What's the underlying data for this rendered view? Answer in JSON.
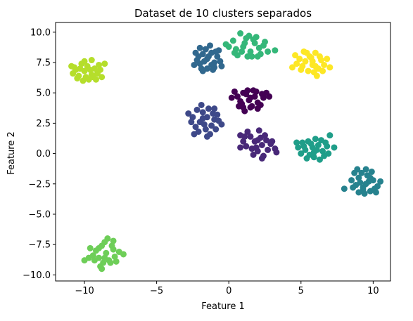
{
  "chart_data": {
    "type": "scatter",
    "title": "Dataset de 10 clusters separados",
    "xlabel": "Feature 1",
    "ylabel": "Feature 2",
    "xlim": [
      -12.0,
      11.2
    ],
    "ylim": [
      -10.5,
      10.8
    ],
    "x_ticks": [
      -10,
      -5,
      0,
      5,
      10
    ],
    "x_tick_labels": [
      "−10",
      "−5",
      "0",
      "5",
      "10"
    ],
    "y_ticks": [
      -10.0,
      -7.5,
      -5.0,
      -2.5,
      0.0,
      2.5,
      5.0,
      7.5,
      10.0
    ],
    "y_tick_labels": [
      "−10.0",
      "−7.5",
      "−5.0",
      "−2.5",
      "0.0",
      "2.5",
      "5.0",
      "7.5",
      "10.0"
    ],
    "grid": false,
    "legend": "none",
    "colormap": "viridis",
    "series": [
      {
        "color": "#440154",
        "points": [
          [
            1.0,
            5.0
          ],
          [
            1.5,
            4.6
          ],
          [
            2.0,
            4.2
          ],
          [
            0.8,
            4.3
          ],
          [
            1.2,
            4.9
          ],
          [
            1.9,
            5.1
          ],
          [
            2.4,
            4.6
          ],
          [
            0.6,
            4.7
          ],
          [
            1.6,
            3.9
          ],
          [
            1.0,
            3.8
          ],
          [
            2.2,
            4.0
          ],
          [
            1.3,
            5.2
          ],
          [
            0.2,
            4.6
          ],
          [
            2.8,
            4.7
          ],
          [
            1.4,
            4.4
          ],
          [
            1.8,
            4.7
          ],
          [
            0.9,
            4.1
          ],
          [
            2.6,
            5.0
          ],
          [
            1.1,
            3.5
          ],
          [
            2.0,
            3.7
          ],
          [
            0.4,
            5.1
          ],
          [
            1.7,
            5.2
          ],
          [
            1.5,
            3.8
          ],
          [
            0.7,
            3.9
          ],
          [
            2.3,
            4.9
          ]
        ]
      },
      {
        "color": "#482878",
        "points": [
          [
            1.8,
            1.0
          ],
          [
            2.3,
            0.7
          ],
          [
            1.2,
            0.6
          ],
          [
            2.6,
            1.1
          ],
          [
            1.6,
            0.4
          ],
          [
            2.9,
            0.8
          ],
          [
            1.0,
            1.0
          ],
          [
            2.0,
            0.2
          ],
          [
            2.5,
            1.5
          ],
          [
            1.5,
            1.4
          ],
          [
            3.2,
            0.4
          ],
          [
            0.8,
            0.5
          ],
          [
            2.2,
            1.3
          ],
          [
            1.9,
            0.5
          ],
          [
            2.7,
            0.3
          ],
          [
            1.3,
            1.8
          ],
          [
            2.1,
            1.9
          ],
          [
            3.0,
            1.0
          ],
          [
            1.7,
            -0.1
          ],
          [
            2.4,
            -0.2
          ],
          [
            1.1,
            1.4
          ],
          [
            2.0,
            1.1
          ],
          [
            3.3,
            0.1
          ],
          [
            2.3,
            -0.4
          ],
          [
            0.8,
            1.5
          ]
        ]
      },
      {
        "color": "#3e4989",
        "points": [
          [
            -1.5,
            3.0
          ],
          [
            -2.0,
            2.6
          ],
          [
            -1.0,
            2.8
          ],
          [
            -1.8,
            3.4
          ],
          [
            -2.3,
            2.2
          ],
          [
            -1.2,
            2.3
          ],
          [
            -0.8,
            3.2
          ],
          [
            -1.6,
            2.0
          ],
          [
            -2.5,
            3.0
          ],
          [
            -1.4,
            3.7
          ],
          [
            -0.9,
            2.0
          ],
          [
            -2.1,
            1.8
          ],
          [
            -1.0,
            3.7
          ],
          [
            -1.9,
            4.0
          ],
          [
            -2.6,
            2.6
          ],
          [
            -1.3,
            1.6
          ],
          [
            -0.7,
            2.7
          ],
          [
            -2.8,
            3.3
          ],
          [
            -1.7,
            2.4
          ],
          [
            -1.1,
            3.3
          ],
          [
            -2.2,
            3.6
          ],
          [
            -1.5,
            1.4
          ],
          [
            -0.5,
            2.4
          ],
          [
            -2.4,
            1.6
          ],
          [
            -1.8,
            2.9
          ]
        ]
      },
      {
        "color": "#31688e",
        "points": [
          [
            -1.5,
            7.8
          ],
          [
            -2.0,
            7.4
          ],
          [
            -1.0,
            7.5
          ],
          [
            -1.8,
            8.2
          ],
          [
            -1.2,
            8.3
          ],
          [
            -2.2,
            7.7
          ],
          [
            -0.8,
            8.0
          ],
          [
            -1.5,
            7.0
          ],
          [
            -1.6,
            8.6
          ],
          [
            -2.3,
            8.3
          ],
          [
            -1.0,
            7.1
          ],
          [
            -0.6,
            7.6
          ],
          [
            -1.9,
            7.0
          ],
          [
            -1.3,
            8.9
          ],
          [
            -2.0,
            8.7
          ],
          [
            -1.1,
            6.9
          ],
          [
            -0.7,
            8.5
          ],
          [
            -2.4,
            7.3
          ],
          [
            -1.7,
            7.6
          ],
          [
            -1.4,
            8.0
          ],
          [
            -0.9,
            8.4
          ],
          [
            -2.1,
            8.0
          ],
          [
            -1.8,
            6.8
          ],
          [
            -1.2,
            7.3
          ],
          [
            -0.5,
            7.2
          ]
        ]
      },
      {
        "color": "#26828e",
        "points": [
          [
            9.5,
            -2.5
          ],
          [
            9.0,
            -2.0
          ],
          [
            10.0,
            -2.2
          ],
          [
            9.3,
            -3.0
          ],
          [
            8.8,
            -2.6
          ],
          [
            9.8,
            -3.1
          ],
          [
            9.2,
            -1.6
          ],
          [
            10.3,
            -2.7
          ],
          [
            9.6,
            -1.8
          ],
          [
            8.7,
            -1.6
          ],
          [
            9.9,
            -1.5
          ],
          [
            9.4,
            -3.3
          ],
          [
            10.1,
            -2.9
          ],
          [
            8.6,
            -2.8
          ],
          [
            9.1,
            -2.4
          ],
          [
            9.7,
            -2.3
          ],
          [
            10.5,
            -2.3
          ],
          [
            9.0,
            -3.2
          ],
          [
            8.0,
            -2.9
          ],
          [
            9.5,
            -1.3
          ],
          [
            10.2,
            -3.2
          ],
          [
            8.9,
            -1.3
          ],
          [
            9.3,
            -2.8
          ],
          [
            9.8,
            -2.0
          ],
          [
            8.5,
            -2.2
          ]
        ]
      },
      {
        "color": "#1f9e89",
        "points": [
          [
            5.8,
            0.5
          ],
          [
            5.3,
            0.3
          ],
          [
            6.2,
            0.7
          ],
          [
            5.6,
            -0.1
          ],
          [
            6.5,
            0.2
          ],
          [
            5.1,
            0.9
          ],
          [
            6.0,
            1.2
          ],
          [
            5.5,
            1.0
          ],
          [
            6.8,
            0.6
          ],
          [
            5.9,
            -0.3
          ],
          [
            5.0,
            0.0
          ],
          [
            6.4,
            1.1
          ],
          [
            6.9,
            0.0
          ],
          [
            5.7,
            0.8
          ],
          [
            6.1,
            0.3
          ],
          [
            4.8,
            0.5
          ],
          [
            6.6,
            -0.2
          ],
          [
            5.4,
            -0.4
          ],
          [
            7.3,
            0.5
          ],
          [
            6.3,
            -0.5
          ],
          [
            7.0,
            1.5
          ],
          [
            4.7,
            0.9
          ],
          [
            5.2,
            0.6
          ],
          [
            6.7,
            0.9
          ],
          [
            5.9,
            0.1
          ]
        ]
      },
      {
        "color": "#35b779",
        "points": [
          [
            1.0,
            8.8
          ],
          [
            1.5,
            8.4
          ],
          [
            0.5,
            8.6
          ],
          [
            1.8,
            9.1
          ],
          [
            1.2,
            9.5
          ],
          [
            0.8,
            9.9
          ],
          [
            1.6,
            8.0
          ],
          [
            2.1,
            8.7
          ],
          [
            0.3,
            9.3
          ],
          [
            1.3,
            8.0
          ],
          [
            2.4,
            8.9
          ],
          [
            0.0,
            8.8
          ],
          [
            1.9,
            9.6
          ],
          [
            2.7,
            8.4
          ],
          [
            1.1,
            9.1
          ],
          [
            0.6,
            8.1
          ],
          [
            2.2,
            8.2
          ],
          [
            3.2,
            8.5
          ],
          [
            0.9,
            8.4
          ],
          [
            1.7,
            9.4
          ],
          [
            -0.2,
            9.0
          ],
          [
            1.4,
            9.7
          ],
          [
            2.5,
            9.2
          ],
          [
            0.4,
            8.3
          ],
          [
            2.0,
            8.0
          ]
        ]
      },
      {
        "color": "#6ece58",
        "points": [
          [
            -8.5,
            -8.2
          ],
          [
            -9.0,
            -8.6
          ],
          [
            -8.0,
            -7.9
          ],
          [
            -8.8,
            -7.6
          ],
          [
            -8.3,
            -8.8
          ],
          [
            -9.2,
            -8.0
          ],
          [
            -7.9,
            -8.5
          ],
          [
            -8.6,
            -7.3
          ],
          [
            -8.1,
            -7.6
          ],
          [
            -9.4,
            -8.4
          ],
          [
            -8.7,
            -9.0
          ],
          [
            -7.6,
            -8.1
          ],
          [
            -9.0,
            -7.8
          ],
          [
            -8.4,
            -7.0
          ],
          [
            -7.8,
            -8.9
          ],
          [
            -8.9,
            -9.3
          ],
          [
            -9.6,
            -7.8
          ],
          [
            -8.2,
            -9.0
          ],
          [
            -7.3,
            -8.3
          ],
          [
            -8.6,
            -8.6
          ],
          [
            -8.8,
            -9.5
          ],
          [
            -9.3,
            -8.8
          ],
          [
            -8.0,
            -7.2
          ],
          [
            -9.7,
            -8.6
          ],
          [
            -10.0,
            -8.8
          ]
        ]
      },
      {
        "color": "#b5de2b",
        "points": [
          [
            -10.0,
            6.8
          ],
          [
            -9.5,
            6.5
          ],
          [
            -10.4,
            6.4
          ],
          [
            -9.8,
            7.2
          ],
          [
            -9.3,
            7.0
          ],
          [
            -10.2,
            7.4
          ],
          [
            -9.7,
            6.1
          ],
          [
            -10.6,
            6.9
          ],
          [
            -9.1,
            6.6
          ],
          [
            -10.0,
            7.6
          ],
          [
            -9.5,
            7.7
          ],
          [
            -10.5,
            6.2
          ],
          [
            -9.2,
            6.1
          ],
          [
            -10.8,
            6.6
          ],
          [
            -9.9,
            6.3
          ],
          [
            -10.3,
            7.0
          ],
          [
            -8.9,
            6.9
          ],
          [
            -9.6,
            6.9
          ],
          [
            -10.7,
            7.1
          ],
          [
            -9.0,
            7.3
          ],
          [
            -8.6,
            7.4
          ],
          [
            -10.1,
            6.0
          ],
          [
            -9.4,
            6.3
          ],
          [
            -8.8,
            6.3
          ],
          [
            -10.9,
            7.2
          ]
        ]
      },
      {
        "color": "#fde725",
        "points": [
          [
            5.8,
            7.3
          ],
          [
            5.3,
            7.6
          ],
          [
            6.2,
            7.0
          ],
          [
            5.6,
            8.0
          ],
          [
            6.0,
            8.3
          ],
          [
            5.1,
            7.2
          ],
          [
            6.4,
            7.7
          ],
          [
            5.5,
            6.8
          ],
          [
            6.6,
            7.3
          ],
          [
            4.9,
            7.8
          ],
          [
            5.9,
            6.7
          ],
          [
            6.3,
            8.0
          ],
          [
            4.7,
            7.4
          ],
          [
            5.7,
            7.9
          ],
          [
            5.4,
            8.3
          ],
          [
            6.8,
            7.8
          ],
          [
            4.6,
            8.1
          ],
          [
            6.1,
            6.4
          ],
          [
            5.0,
            6.9
          ],
          [
            7.0,
            7.1
          ],
          [
            6.5,
            6.8
          ],
          [
            4.4,
            7.1
          ],
          [
            5.2,
            8.4
          ],
          [
            5.8,
            7.6
          ],
          [
            6.0,
            7.2
          ]
        ]
      }
    ]
  }
}
